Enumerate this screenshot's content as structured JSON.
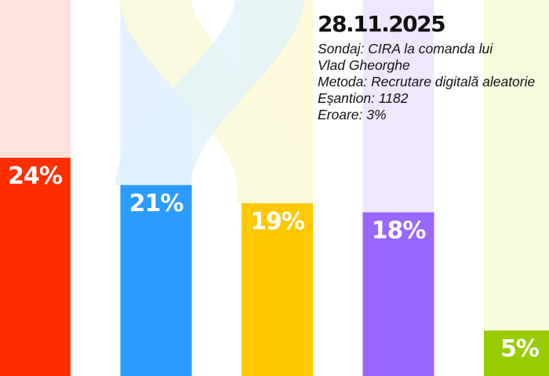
{
  "info": {
    "date": "28.11.2025",
    "lines": [
      "Sondaj: CIRA la comanda lui",
      "Vlad Gheorghe",
      "Metoda: Recrutare digitală aleatorie",
      "Eșantion: 1182",
      "Eroare: 3%"
    ]
  },
  "chart_data": {
    "type": "bar",
    "title": "",
    "xlabel": "",
    "ylabel": "",
    "ylim": [
      0,
      24
    ],
    "categories": [
      "",
      "",
      "",
      "",
      ""
    ],
    "values": [
      24,
      21,
      19,
      18,
      5
    ],
    "labels": [
      "24%",
      "21%",
      "19%",
      "18%",
      "5%"
    ],
    "colors": [
      "#ff2e00",
      "#2b9bff",
      "#ffc800",
      "#9966ff",
      "#99cc00"
    ],
    "backgroundColors": [
      "#fde3dc",
      "#e2f1fd",
      "#fdfadc",
      "#f1e7fd",
      "#f6fbdc"
    ],
    "grid": false,
    "legend": "none"
  }
}
